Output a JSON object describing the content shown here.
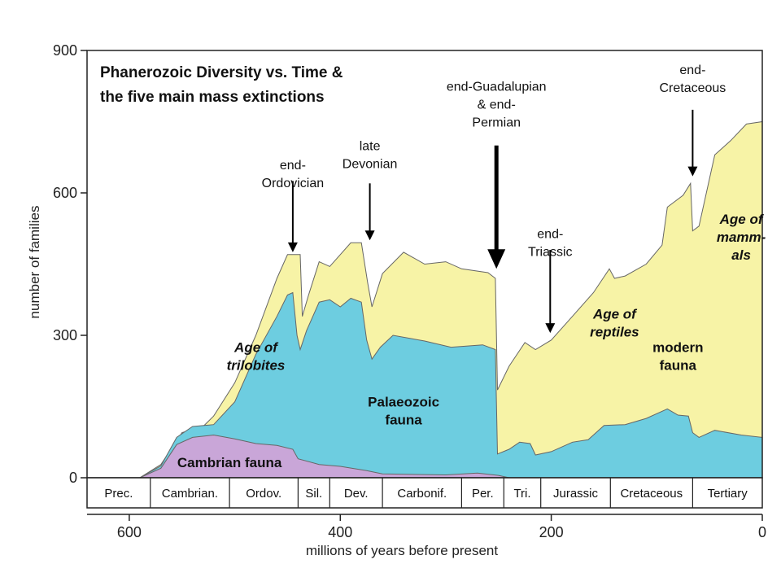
{
  "chart_data": {
    "type": "area",
    "title_lines": [
      "Phanerozoic Diversity vs. Time &",
      "the five main mass extinctions"
    ],
    "xlabel": "millions of years before present",
    "ylabel": "number of families",
    "xlim": [
      640,
      0
    ],
    "ylim": [
      0,
      900
    ],
    "x_reversed": true,
    "x_ticks": [
      600,
      400,
      200,
      0
    ],
    "y_ticks": [
      0,
      300,
      600,
      900
    ],
    "grid": false,
    "series": [
      {
        "name": "Cambrian fauna",
        "color": "#c9a6d8",
        "points": [
          [
            590,
            0
          ],
          [
            570,
            20
          ],
          [
            555,
            70
          ],
          [
            540,
            85
          ],
          [
            520,
            90
          ],
          [
            500,
            82
          ],
          [
            480,
            72
          ],
          [
            460,
            68
          ],
          [
            445,
            60
          ],
          [
            440,
            40
          ],
          [
            420,
            28
          ],
          [
            400,
            24
          ],
          [
            375,
            15
          ],
          [
            360,
            8
          ],
          [
            300,
            6
          ],
          [
            270,
            10
          ],
          [
            250,
            5
          ],
          [
            240,
            0
          ]
        ]
      },
      {
        "name": "Palaeozoic fauna",
        "color": "#6dcde0",
        "points": [
          [
            590,
            0
          ],
          [
            570,
            25
          ],
          [
            555,
            85
          ],
          [
            540,
            108
          ],
          [
            520,
            112
          ],
          [
            500,
            160
          ],
          [
            480,
            260
          ],
          [
            460,
            340
          ],
          [
            450,
            385
          ],
          [
            445,
            390
          ],
          [
            441,
            300
          ],
          [
            438,
            270
          ],
          [
            432,
            310
          ],
          [
            420,
            370
          ],
          [
            410,
            375
          ],
          [
            400,
            360
          ],
          [
            390,
            378
          ],
          [
            380,
            370
          ],
          [
            375,
            290
          ],
          [
            370,
            250
          ],
          [
            362,
            275
          ],
          [
            350,
            300
          ],
          [
            320,
            288
          ],
          [
            295,
            275
          ],
          [
            265,
            280
          ],
          [
            253,
            270
          ],
          [
            251,
            50
          ],
          [
            240,
            60
          ],
          [
            230,
            75
          ],
          [
            220,
            72
          ],
          [
            215,
            48
          ],
          [
            200,
            55
          ],
          [
            180,
            75
          ],
          [
            165,
            80
          ],
          [
            150,
            110
          ],
          [
            130,
            112
          ],
          [
            110,
            125
          ],
          [
            90,
            145
          ],
          [
            80,
            132
          ],
          [
            70,
            130
          ],
          [
            66,
            95
          ],
          [
            60,
            85
          ],
          [
            45,
            100
          ],
          [
            20,
            90
          ],
          [
            0,
            85
          ]
        ]
      },
      {
        "name": "modern fauna",
        "color": "#f7f3a6",
        "points": [
          [
            590,
            0
          ],
          [
            570,
            28
          ],
          [
            550,
            95
          ],
          [
            530,
            108
          ],
          [
            520,
            130
          ],
          [
            500,
            200
          ],
          [
            480,
            300
          ],
          [
            460,
            420
          ],
          [
            450,
            470
          ],
          [
            438,
            470
          ],
          [
            436,
            340
          ],
          [
            430,
            385
          ],
          [
            420,
            455
          ],
          [
            410,
            445
          ],
          [
            400,
            470
          ],
          [
            390,
            495
          ],
          [
            380,
            495
          ],
          [
            374,
            410
          ],
          [
            370,
            360
          ],
          [
            360,
            430
          ],
          [
            340,
            475
          ],
          [
            320,
            450
          ],
          [
            300,
            455
          ],
          [
            285,
            440
          ],
          [
            260,
            432
          ],
          [
            253,
            420
          ],
          [
            251,
            185
          ],
          [
            240,
            235
          ],
          [
            225,
            285
          ],
          [
            215,
            270
          ],
          [
            200,
            290
          ],
          [
            180,
            340
          ],
          [
            160,
            390
          ],
          [
            145,
            440
          ],
          [
            140,
            420
          ],
          [
            130,
            425
          ],
          [
            110,
            450
          ],
          [
            95,
            490
          ],
          [
            90,
            570
          ],
          [
            75,
            595
          ],
          [
            68,
            620
          ],
          [
            66,
            520
          ],
          [
            60,
            530
          ],
          [
            45,
            680
          ],
          [
            30,
            710
          ],
          [
            15,
            745
          ],
          [
            0,
            750
          ]
        ]
      }
    ],
    "area_labels": [
      {
        "lines": [
          "Cambrian fauna"
        ],
        "x": 505,
        "y": 22,
        "style": "bold"
      },
      {
        "lines": [
          "Age of",
          "trilobites"
        ],
        "x": 480,
        "y": 265,
        "style": "italic"
      },
      {
        "lines": [
          "Palaeozoic",
          "fauna"
        ],
        "x": 340,
        "y": 150,
        "style": "bold"
      },
      {
        "lines": [
          "Age of",
          "reptiles"
        ],
        "x": 140,
        "y": 335,
        "style": "italic"
      },
      {
        "lines": [
          "modern",
          "fauna"
        ],
        "x": 80,
        "y": 265,
        "style": "bold"
      },
      {
        "lines": [
          "Age of",
          "mamm-",
          "als"
        ],
        "x": 20,
        "y": 535,
        "style": "italic"
      }
    ],
    "extinctions": [
      {
        "lines": [
          "end-",
          "Ordovician"
        ],
        "x": 445,
        "text_y": 650,
        "y_from": 625,
        "y_to": 475,
        "heavy": false
      },
      {
        "lines": [
          "late",
          "Devonian"
        ],
        "x": 372,
        "text_y": 690,
        "y_from": 620,
        "y_to": 500,
        "heavy": false
      },
      {
        "lines": [
          "end-Guadalupian",
          "& end-",
          "Permian"
        ],
        "x": 252,
        "text_y": 815,
        "y_from": 700,
        "y_to": 440,
        "heavy": true
      },
      {
        "lines": [
          "end-",
          "Triassic"
        ],
        "x": 201,
        "text_y": 505,
        "y_from": 480,
        "y_to": 305,
        "heavy": false
      },
      {
        "lines": [
          "end-",
          "Cretaceous"
        ],
        "x": 66,
        "text_y": 850,
        "y_from": 775,
        "y_to": 635,
        "heavy": false
      }
    ],
    "periods": [
      {
        "label": "Prec.",
        "start": 640,
        "end": 580
      },
      {
        "label": "Cambrian.",
        "start": 580,
        "end": 505
      },
      {
        "label": "Ordov.",
        "start": 505,
        "end": 440
      },
      {
        "label": "Sil.",
        "start": 440,
        "end": 410
      },
      {
        "label": "Dev.",
        "start": 410,
        "end": 360
      },
      {
        "label": "Carbonif.",
        "start": 360,
        "end": 285
      },
      {
        "label": "Per.",
        "start": 285,
        "end": 245
      },
      {
        "label": "Tri.",
        "start": 245,
        "end": 210
      },
      {
        "label": "Jurassic",
        "start": 210,
        "end": 144
      },
      {
        "label": "Cretaceous",
        "start": 144,
        "end": 66
      },
      {
        "label": "Tertiary",
        "start": 66,
        "end": 0
      }
    ]
  }
}
